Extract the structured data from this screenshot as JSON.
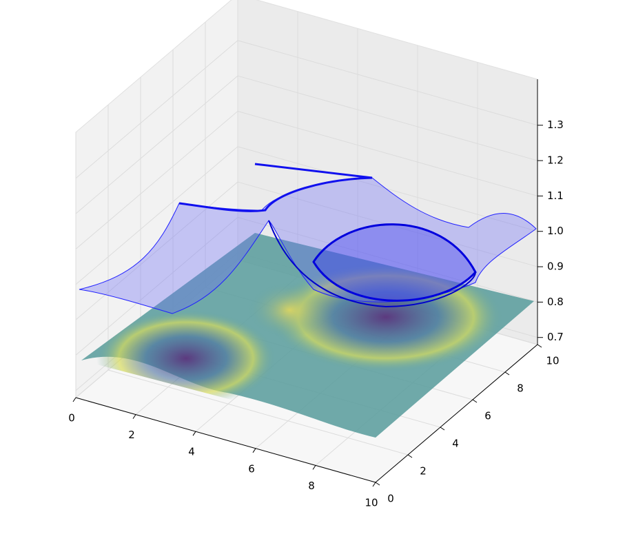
{
  "chart_data": {
    "type": "surface3d",
    "xlim": [
      0,
      10
    ],
    "ylim": [
      0,
      10
    ],
    "zlim": [
      0.68,
      1.43
    ],
    "xticks": [
      0,
      2,
      4,
      6,
      8,
      10
    ],
    "yticks": [
      0,
      2,
      4,
      6,
      8,
      10
    ],
    "zticks": [
      0.7,
      0.8,
      0.9,
      {
        "value": 1,
        "label": "1.0"
      },
      1.1,
      1.2,
      1.3
    ],
    "grid": true
  }
}
